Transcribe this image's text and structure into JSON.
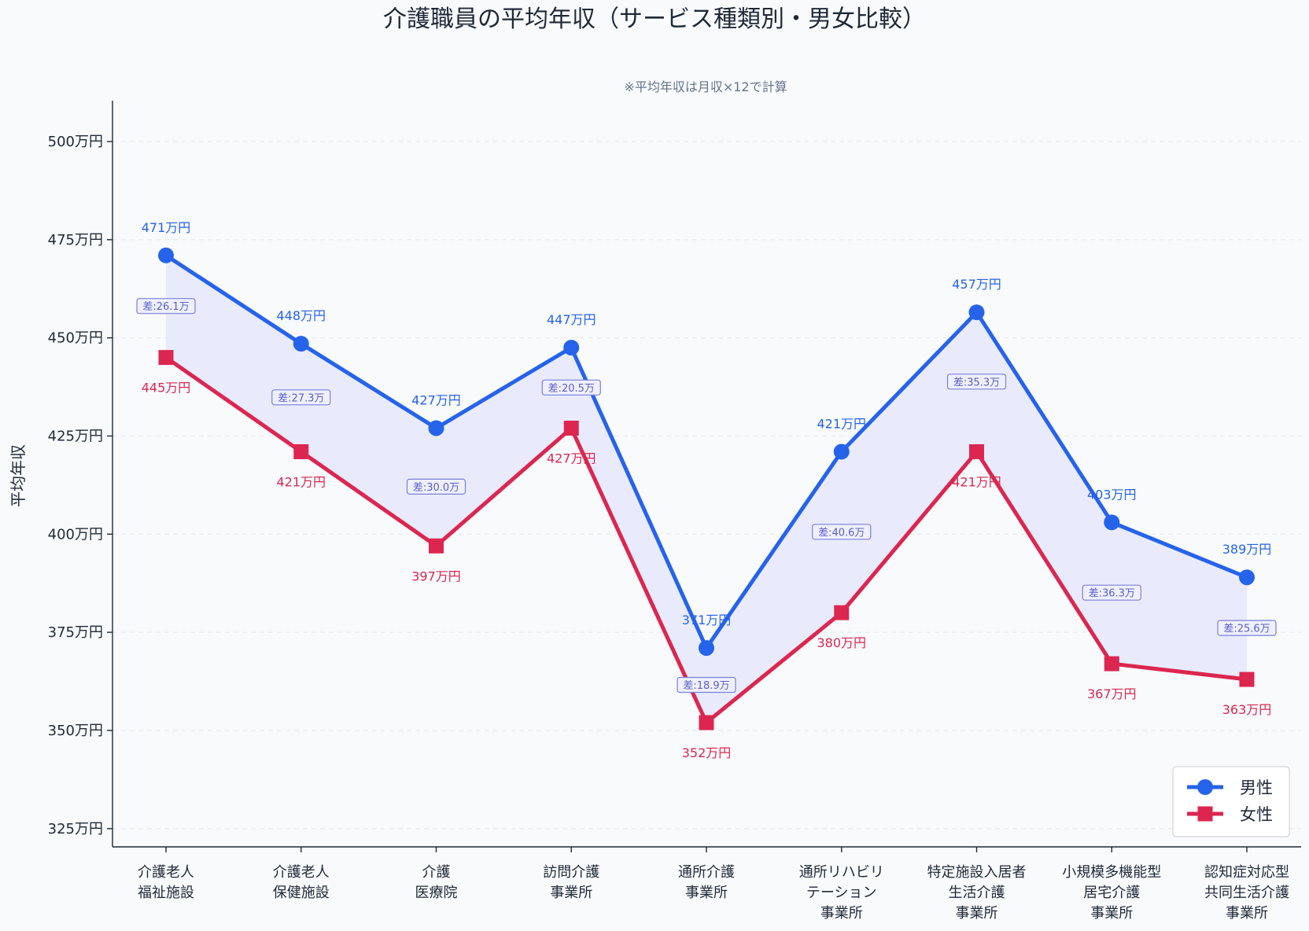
{
  "chart_data": {
    "type": "line",
    "title": "介護職員の平均年収（サービス種類別・男女比較）",
    "subtitle": "※平均年収は月収×12で計算",
    "xlabel": "",
    "ylabel": "平均年収",
    "ylim": [
      320,
      510
    ],
    "yticks": [
      325,
      350,
      375,
      400,
      425,
      450,
      475,
      500
    ],
    "ytick_labels": [
      "325万円",
      "350万円",
      "375万円",
      "400万円",
      "425万円",
      "450万円",
      "475万円",
      "500万円"
    ],
    "grid": "horizontal",
    "legend_position": "bottom-right",
    "categories": [
      [
        "介護老人",
        "福祉施設"
      ],
      [
        "介護老人",
        "保健施設"
      ],
      [
        "介護",
        "医療院"
      ],
      [
        "訪問介護",
        "事業所"
      ],
      [
        "通所介護",
        "事業所"
      ],
      [
        "通所リハビリ",
        "テーション",
        "事業所"
      ],
      [
        "特定施設入居者",
        "生活介護",
        "事業所"
      ],
      [
        "小規模多機能型",
        "居宅介護",
        "事業所"
      ],
      [
        "認知症対応型",
        "共同生活介護",
        "事業所"
      ]
    ],
    "series": [
      {
        "name": "男性",
        "color": "#2563eb",
        "marker": "circle",
        "values": [
          471,
          448.5,
          427,
          447.5,
          371,
          421,
          456.5,
          403,
          389
        ],
        "labels": [
          "471万円",
          "448万円",
          "427万円",
          "447万円",
          "371万円",
          "421万円",
          "457万円",
          "403万円",
          "389万円"
        ]
      },
      {
        "name": "女性",
        "color": "#dc2650",
        "marker": "square",
        "values": [
          445,
          421,
          397,
          427,
          352,
          380,
          421,
          367,
          363
        ],
        "labels": [
          "445万円",
          "421万円",
          "397万円",
          "427万円",
          "352万円",
          "380万円",
          "421万円",
          "367万円",
          "363万円"
        ]
      }
    ],
    "difference_labels": [
      "差:26.1万",
      "差:27.3万",
      "差:30.0万",
      "差:20.5万",
      "差:18.9万",
      "差:40.6万",
      "差:35.3万",
      "差:36.3万",
      "差:25.6万"
    ],
    "fill_color": "#e6e8fb"
  }
}
